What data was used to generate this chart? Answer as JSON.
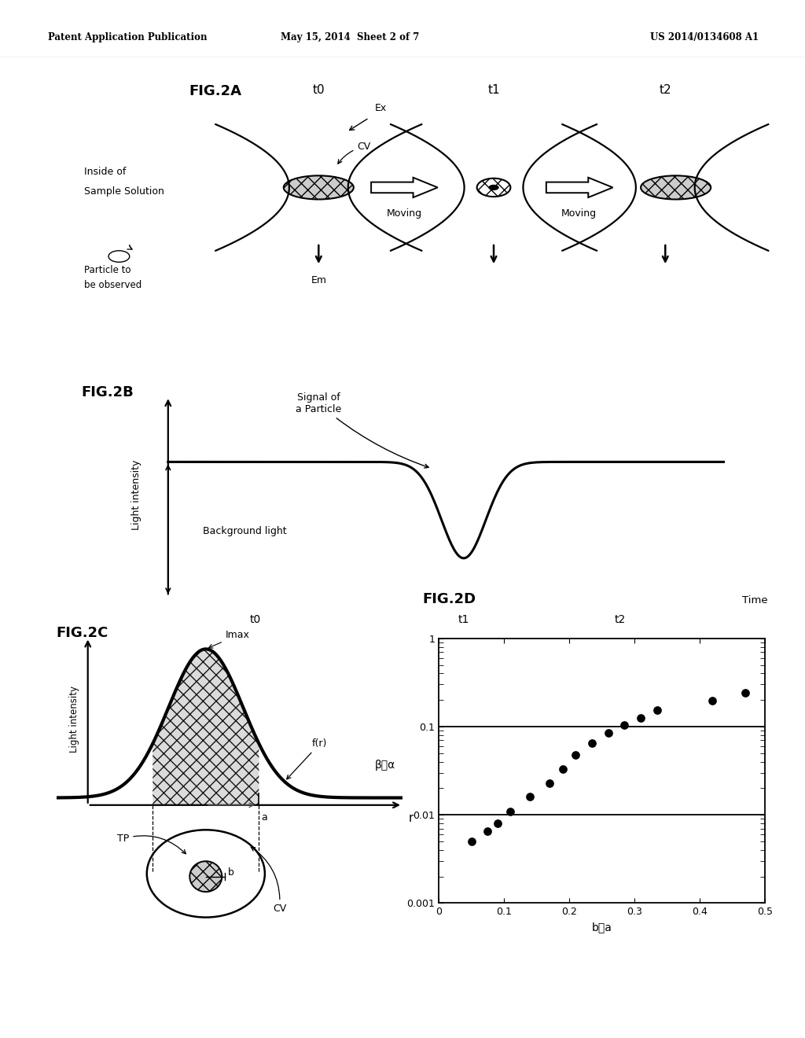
{
  "header_left": "Patent Application Publication",
  "header_mid": "May 15, 2014  Sheet 2 of 7",
  "header_right": "US 2014/0134608 A1",
  "fig2a_label": "FIG.2A",
  "fig2b_label": "FIG.2B",
  "fig2c_label": "FIG.2C",
  "fig2d_label": "FIG.2D",
  "fig2d_scatter_x": [
    0.05,
    0.075,
    0.09,
    0.11,
    0.14,
    0.17,
    0.19,
    0.21,
    0.235,
    0.26,
    0.285,
    0.31,
    0.335,
    0.42,
    0.47
  ],
  "fig2d_scatter_y": [
    0.005,
    0.0065,
    0.008,
    0.011,
    0.016,
    0.023,
    0.033,
    0.048,
    0.065,
    0.085,
    0.105,
    0.125,
    0.155,
    0.195,
    0.24
  ],
  "background_color": "#ffffff"
}
